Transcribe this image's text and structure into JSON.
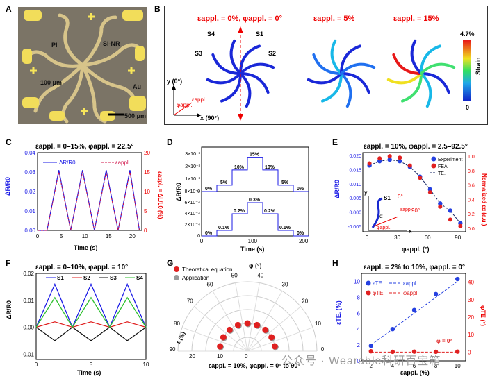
{
  "panel_letters": [
    "A",
    "B",
    "C",
    "D",
    "E",
    "F",
    "G",
    "H"
  ],
  "panelA": {
    "labels": [
      "PI",
      "Si-NR",
      "100 μm",
      "Au"
    ],
    "scalebar": "500 μm"
  },
  "panelB": {
    "titles": [
      "εappl. = 0%, φappl. = 0°",
      "εappl. = 5%",
      "εappl. = 15%"
    ],
    "spokes": [
      "S4",
      "S1",
      "S3",
      "S2"
    ],
    "axis_y": "y (0°)",
    "axis_x": "x (90°)",
    "phi": "φappl.",
    "eps": "εappl.",
    "colorbar": {
      "max": "4.7%",
      "min": "0",
      "label": "Strain"
    }
  },
  "panelC": {
    "title": "εappl. = 0–15%, φappl. = 22.5°",
    "ylabel": "ΔR/R0",
    "y2label": "εappl. = ΔL/L0 (%)",
    "xlabel": "Time (s)",
    "legend": [
      "ΔR/R0",
      "εappl."
    ],
    "yticks": [
      "0.00",
      "0.01",
      "0.02",
      "0.03",
      "0.04"
    ],
    "y2ticks": [
      "0",
      "5",
      "10",
      "15",
      "20"
    ],
    "xticks": [
      "0",
      "5",
      "10",
      "15",
      "20"
    ]
  },
  "panelD": {
    "ylabel": "ΔR/R0",
    "xlabel": "Time (s)",
    "top": {
      "yticks": [
        "0",
        "1×10⁻³",
        "2×10⁻³",
        "3×10⁻³"
      ],
      "steps": [
        "0%",
        "5%",
        "10%",
        "15%",
        "10%",
        "5%",
        "0%"
      ]
    },
    "bottom": {
      "yticks": [
        "0",
        "2×10⁻⁴",
        "4×10⁻⁴",
        "6×10⁻⁴",
        "8×10⁻⁴"
      ],
      "steps": [
        "0%",
        "0.1%",
        "0.2%",
        "0.3%",
        "0.2%",
        "0.1%",
        "0%"
      ]
    },
    "xticks": [
      "0",
      "100",
      "200"
    ]
  },
  "panelE": {
    "title": "εappl. = 10%, φappl. = 2.5–92.5°",
    "ylabel": "ΔR/R0",
    "y2label": "Normalized εα (a.u.)",
    "xlabel": "φappl. (°)",
    "legend": [
      "Experiment",
      "FEA",
      "TE."
    ],
    "yticks": [
      "-0.005",
      "0.000",
      "0.005",
      "0.010",
      "0.015",
      "0.020"
    ],
    "y2ticks": [
      "0.0",
      "0.2",
      "0.4",
      "0.6",
      "0.8",
      "1.0"
    ],
    "xticks": [
      "0",
      "30",
      "60",
      "90"
    ],
    "inset": {
      "y": "y",
      "x": "x",
      "s1": "S1",
      "alpha": "α",
      "phi": "φappl.",
      "eps": "εappl.",
      "zero": "0°",
      "ninety": "90°"
    }
  },
  "panelF": {
    "title": "εappl. = 0–10%, φappl. = 10°",
    "ylabel": "ΔR/R0",
    "xlabel": "Time (s)",
    "legend": [
      "S1",
      "S2",
      "S3",
      "S4"
    ],
    "yticks": [
      "-0.01",
      "0.00",
      "0.01",
      "0.02"
    ],
    "xticks": [
      "0",
      "5",
      "10"
    ]
  },
  "panelG": {
    "legend": [
      "Theoretical equation",
      "Application"
    ],
    "angle_label": "φ (°)",
    "angle_ticks": [
      "0",
      "10",
      "20",
      "30",
      "40",
      "50",
      "60",
      "70",
      "80",
      "90"
    ],
    "radial_label": "ε (%)",
    "radial_ticks": [
      "0",
      "10",
      "20"
    ],
    "caption": "εappl. = 10%, φappl. = 0° to 90°"
  },
  "panelH": {
    "title": "εappl. = 2% to 10%, φappl. = 0°",
    "ylabel": "εTE. (%)",
    "y2label": "φTE (°)",
    "xlabel": "εappl. (%)",
    "legend": [
      "εTE.",
      "εappl.",
      "φTE.",
      "φappl."
    ],
    "annot": "φ = 0°",
    "yticks": [
      "0",
      "2",
      "4",
      "6",
      "8",
      "10"
    ],
    "y2ticks": [
      "0",
      "10",
      "20",
      "30",
      "40"
    ],
    "xticks": [
      "2",
      "4",
      "6",
      "8",
      "10"
    ]
  },
  "watermark": "公众号 · Wearable科研百宝箱",
  "chart_data": [
    {
      "type": "line",
      "panel": "C",
      "x": [
        0,
        2,
        4.5,
        7,
        9.5,
        12,
        14.5,
        17,
        19.5,
        21.5
      ],
      "series": [
        {
          "name": "ΔR/R0",
          "values": [
            0,
            0,
            0.031,
            0,
            0.031,
            0,
            0.031,
            0,
            0.031,
            0
          ]
        },
        {
          "name": "εappl.",
          "values": [
            0,
            0,
            15,
            0,
            15,
            0,
            15,
            0,
            15,
            0
          ]
        }
      ]
    },
    {
      "type": "line",
      "panel": "D",
      "x": [
        0,
        30,
        60,
        90,
        120,
        150,
        180,
        210
      ],
      "series": [
        {
          "name": "top",
          "values": [
            0,
            0.0005,
            0.0017,
            0.0027,
            0.0017,
            0.0005,
            0,
            0
          ]
        },
        {
          "name": "bottom",
          "values": [
            0,
            0.0001,
            0.0004,
            0.0006,
            0.0004,
            0.0001,
            0,
            0
          ]
        }
      ]
    },
    {
      "type": "scatter",
      "panel": "E",
      "x": [
        2.5,
        12.5,
        22.5,
        32.5,
        42.5,
        52.5,
        62.5,
        72.5,
        82.5,
        92.5
      ],
      "series": [
        {
          "name": "Experiment",
          "values": [
            0.0165,
            0.018,
            0.0185,
            0.018,
            0.016,
            0.0125,
            0.008,
            0.003,
            0.0005,
            -0.004
          ]
        },
        {
          "name": "FEA",
          "values": [
            0.9,
            0.97,
            1.0,
            0.98,
            0.87,
            0.7,
            0.5,
            0.3,
            0.12,
            0.03
          ]
        }
      ]
    },
    {
      "type": "line",
      "panel": "F",
      "x": [
        0,
        1.7,
        3.3,
        5,
        6.7,
        8.3,
        10
      ],
      "series": [
        {
          "name": "S1",
          "values": [
            0,
            0.016,
            0,
            0.016,
            0,
            0.016,
            0
          ]
        },
        {
          "name": "S2",
          "values": [
            0,
            0.002,
            0,
            0.002,
            0,
            0.002,
            0
          ]
        },
        {
          "name": "S3",
          "values": [
            0,
            -0.005,
            0,
            -0.005,
            0,
            -0.005,
            0
          ]
        },
        {
          "name": "S4",
          "values": [
            0,
            0.011,
            0,
            0.011,
            0,
            0.011,
            0
          ]
        }
      ]
    },
    {
      "type": "scatter",
      "panel": "G",
      "x": [
        5,
        15,
        25,
        35,
        45,
        55,
        65,
        75,
        85
      ],
      "series": [
        {
          "name": "Theoretical equation",
          "values": [
            10,
            10,
            10,
            10,
            10,
            10,
            10,
            10,
            10
          ]
        },
        {
          "name": "Application",
          "values": [
            10,
            10,
            10,
            10,
            10,
            10,
            10,
            10,
            10
          ]
        }
      ]
    },
    {
      "type": "scatter",
      "panel": "H",
      "x": [
        2,
        4,
        6,
        8,
        10
      ],
      "series": [
        {
          "name": "εTE.",
          "values": [
            1.9,
            4,
            6.4,
            8.4,
            10.3
          ]
        },
        {
          "name": "φTE.",
          "values": [
            0.5,
            0.2,
            0.3,
            0.2,
            0.3
          ]
        }
      ]
    }
  ]
}
